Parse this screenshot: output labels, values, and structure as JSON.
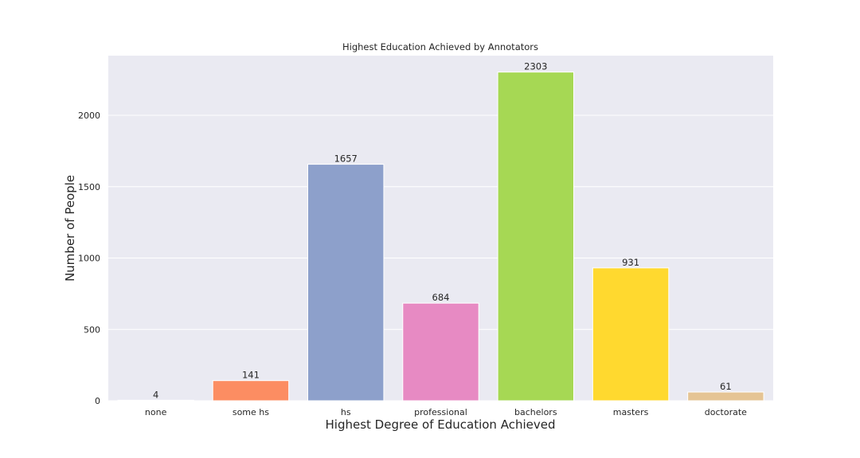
{
  "chart_data": {
    "type": "bar",
    "title": "Highest Education Achieved by Annotators",
    "xlabel": "Highest Degree of Education Achieved",
    "ylabel": "Number of People",
    "categories": [
      "none",
      "some hs",
      "hs",
      "professional",
      "bachelors",
      "masters",
      "doctorate"
    ],
    "values": [
      4,
      141,
      1657,
      684,
      2303,
      931,
      61
    ],
    "colors": [
      "#66c2a5",
      "#fc8d62",
      "#8da0cb",
      "#e78ac3",
      "#a6d854",
      "#ffd92f",
      "#e5c494"
    ],
    "ylim": [
      0,
      2418
    ],
    "yticks": [
      0,
      500,
      1000,
      1500,
      2000
    ],
    "grid": true,
    "background": "#eaeaf2",
    "grid_color": "#ffffff"
  }
}
